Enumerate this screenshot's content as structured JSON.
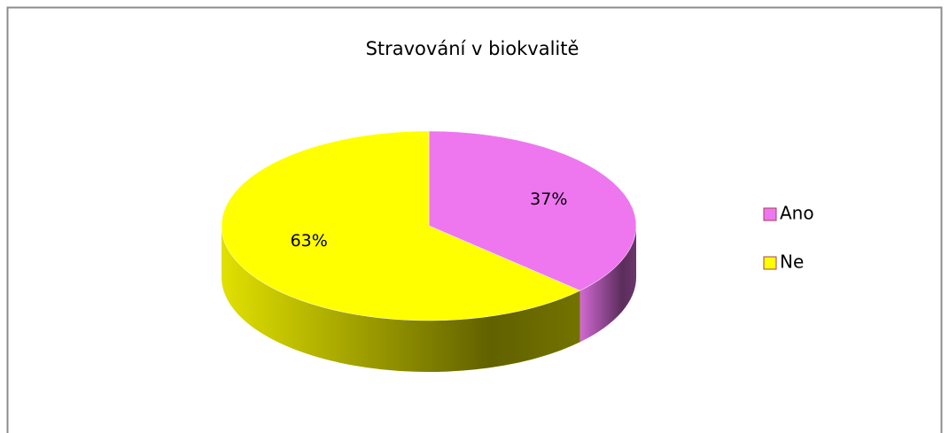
{
  "chart_data": {
    "type": "pie",
    "title": "Stravování v biokvalitě",
    "categories": [
      "Ano",
      "Ne"
    ],
    "values": [
      37,
      63
    ],
    "value_labels": [
      "37%",
      "63%"
    ],
    "colors": [
      "#ee77f0",
      "#ffff00"
    ],
    "legend": "right"
  }
}
